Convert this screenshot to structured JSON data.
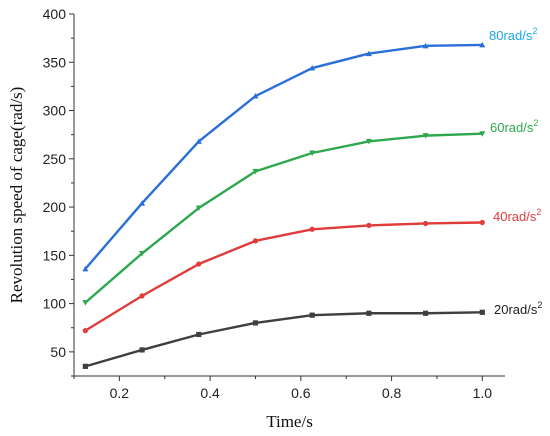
{
  "chart_data": {
    "type": "line",
    "xlabel": "Time/s",
    "ylabel": "Revolution speed of cage(rad/s)",
    "xlim": [
      0.1,
      1.05
    ],
    "ylim": [
      25,
      400
    ],
    "x_ticks": [
      "0.2",
      "0.4",
      "0.6",
      "0.8",
      "1.0"
    ],
    "y_ticks": [
      "50",
      "100",
      "150",
      "200",
      "250",
      "300",
      "350",
      "400"
    ],
    "x_tick_values": [
      0.2,
      0.4,
      0.6,
      0.8,
      1.0
    ],
    "y_tick_values": [
      50,
      100,
      150,
      200,
      250,
      300,
      350,
      400
    ],
    "x": [
      0.125,
      0.25,
      0.375,
      0.5,
      0.625,
      0.75,
      0.875,
      1.0
    ],
    "grid": false,
    "legend": "none",
    "series": [
      {
        "name": "20rad/s",
        "label_base": "20rad/s",
        "label_exp": "2",
        "color": "#3f3f3f",
        "label_color": "#222222",
        "marker": "square",
        "values": [
          35,
          52,
          68,
          80,
          88,
          90,
          90,
          91
        ]
      },
      {
        "name": "40rad/s",
        "label_base": "40rad/s",
        "label_exp": "2",
        "color": "#e03c3c",
        "label_color": "#e03c3c",
        "marker": "circle",
        "values": [
          72,
          108,
          141,
          165,
          177,
          181,
          183,
          184
        ]
      },
      {
        "name": "60rad/s",
        "label_base": "60rad/s",
        "label_exp": "2",
        "color": "#2ea84f",
        "label_color": "#2ea84f",
        "marker": "triangle-down",
        "values": [
          101,
          152,
          199,
          237,
          256,
          268,
          274,
          276
        ]
      },
      {
        "name": "80rad/s",
        "label_base": "80rad/s",
        "label_exp": "2",
        "color": "#2a6fd8",
        "label_color": "#1aa7e8",
        "marker": "triangle-up",
        "values": [
          136,
          204,
          268,
          315,
          344,
          359,
          367,
          368
        ]
      }
    ]
  }
}
